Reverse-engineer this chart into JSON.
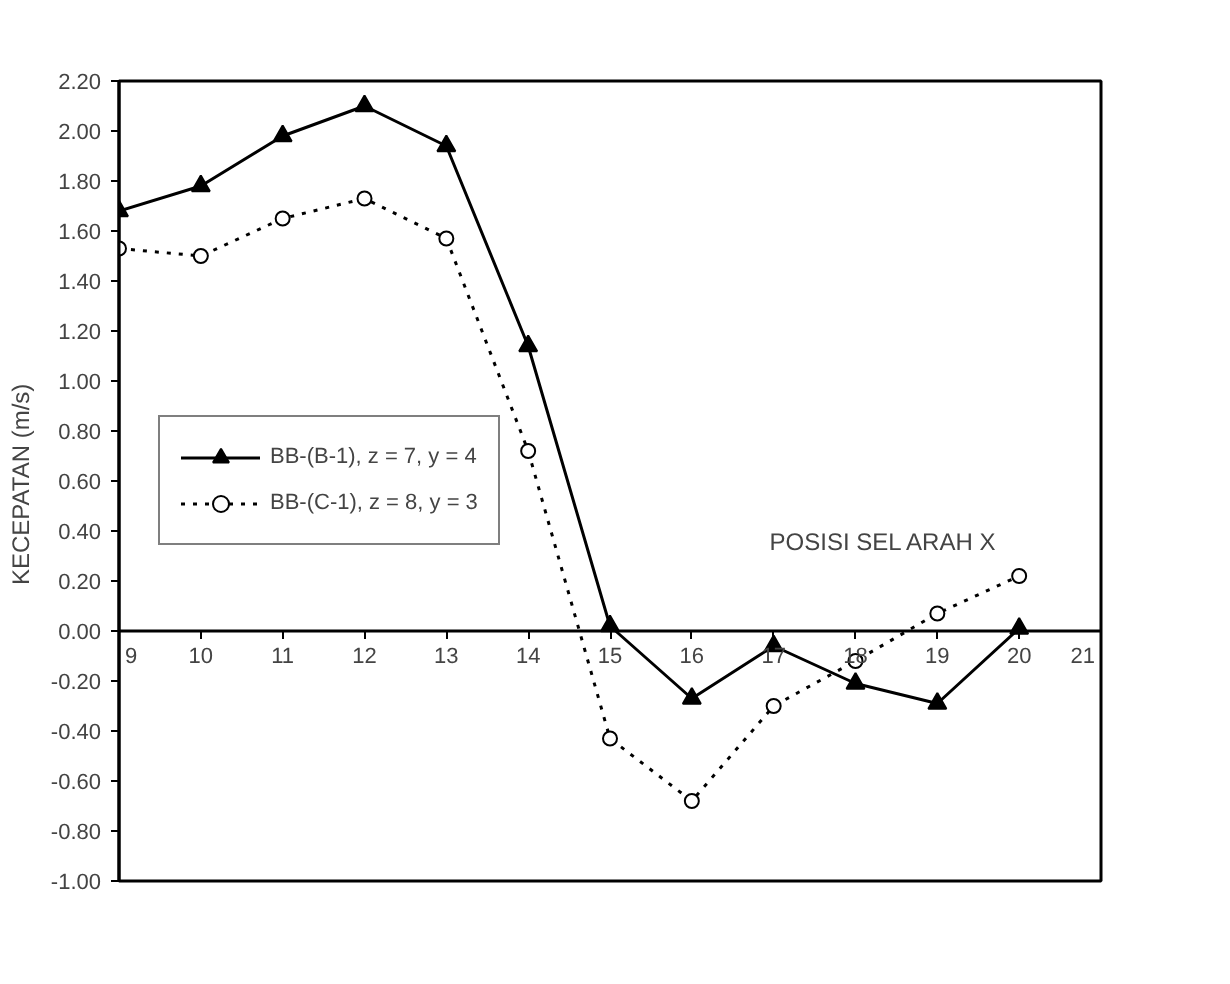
{
  "chart_data": {
    "type": "line",
    "xlabel": "POSISI  SEL ARAH  X",
    "ylabel": "KECEPATAN  (m/s)",
    "x": [
      9,
      10,
      11,
      12,
      13,
      14,
      15,
      16,
      17,
      18,
      19,
      20
    ],
    "series": [
      {
        "name": "BB-(B-1), z = 7, y = 4",
        "color": "#000000",
        "marker": "triangle",
        "line_style": "solid",
        "values": [
          1.68,
          1.78,
          1.98,
          2.1,
          1.94,
          1.14,
          0.02,
          -0.27,
          -0.06,
          -0.21,
          -0.29,
          0.01
        ]
      },
      {
        "name": "BB-(C-1), z = 8, y = 3",
        "color": "#000000",
        "marker": "circle",
        "line_style": "dotted",
        "values": [
          1.53,
          1.5,
          1.65,
          1.73,
          1.57,
          0.72,
          -0.43,
          -0.68,
          -0.3,
          -0.12,
          0.07,
          0.22
        ]
      }
    ],
    "xlim": [
      9,
      21
    ],
    "xticks": [
      9,
      10,
      11,
      12,
      13,
      14,
      15,
      16,
      17,
      18,
      19,
      20,
      21
    ],
    "ylim": [
      -1.0,
      2.2
    ],
    "yticks": [
      {
        "value": -1.0,
        "label": "-1.00"
      },
      {
        "value": -0.8,
        "label": "-0.80"
      },
      {
        "value": -0.6,
        "label": "-0.60"
      },
      {
        "value": -0.4,
        "label": "-0.40"
      },
      {
        "value": -0.2,
        "label": "-0.20"
      },
      {
        "value": 0,
        "label": "0.00"
      },
      {
        "value": 0.2,
        "label": "0.20"
      },
      {
        "value": 0.4,
        "label": "0.40"
      },
      {
        "value": 0.6,
        "label": "0.60"
      },
      {
        "value": 0.8,
        "label": "0.80"
      },
      {
        "value": 1.0,
        "label": "1.00"
      },
      {
        "value": 1.2,
        "label": "1.20"
      },
      {
        "value": 1.4,
        "label": "1.40"
      },
      {
        "value": 1.6,
        "label": "1.60"
      },
      {
        "value": 1.8,
        "label": "1.80"
      },
      {
        "value": 2.0,
        "label": "2.00"
      },
      {
        "value": 2.2,
        "label": "2.20"
      }
    ],
    "grid": false,
    "legend": "left"
  }
}
